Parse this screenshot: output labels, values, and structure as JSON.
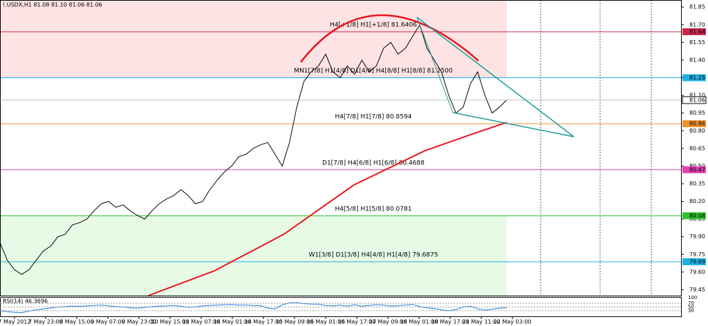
{
  "chart_data": {
    "type": "line",
    "title": "!.USDX,H1  81.08 81.10 81.06 81.06",
    "ylim": [
      79.4,
      81.91
    ],
    "yticks": [
      79.45,
      {
        "value": 79.6,
        "label": "79.60"
      },
      79.75,
      {
        "value": 79.9,
        "label": "79.90"
      },
      80.05,
      {
        "value": 80.2,
        "label": "80.20"
      },
      80.35,
      {
        "value": 80.5,
        "label": "80.50"
      },
      80.65,
      {
        "value": 80.8,
        "label": "80.80"
      },
      80.95,
      {
        "value": 81.1,
        "label": "81.10"
      },
      81.25,
      {
        "value": 81.4,
        "label": "81.40"
      },
      81.55,
      {
        "value": 81.7,
        "label": "81.70"
      },
      81.85
    ],
    "xlim": [
      0,
      94.1
    ],
    "xticks": [
      {
        "value": 2,
        "label": "7 May 2012"
      },
      {
        "value": 6.3,
        "label": "7 May 23:00"
      },
      {
        "value": 10.6,
        "label": "8 May 15:00"
      },
      {
        "value": 14.9,
        "label": "9 May 07:00"
      },
      {
        "value": 19.2,
        "label": "9 May 23:00"
      },
      {
        "value": 23.5,
        "label": "10 May 15:00"
      },
      {
        "value": 27.8,
        "label": "11 May 07:00"
      },
      {
        "value": 32.1,
        "label": "14 May 01:00"
      },
      {
        "value": 36.4,
        "label": "14 May 17:00"
      },
      {
        "value": 40.7,
        "label": "15 May 09:00"
      },
      {
        "value": 45,
        "label": "16 May 01:00"
      },
      {
        "value": 49.3,
        "label": "16 May 17:00"
      },
      {
        "value": 53.6,
        "label": "17 May 09:00"
      },
      {
        "value": 57.9,
        "label": "18 May 01:00"
      },
      {
        "value": 62.2,
        "label": "18 May 17:00"
      },
      {
        "value": 66.5,
        "label": "21 May 11:00"
      },
      {
        "value": 70.8,
        "label": "22 May 03:00"
      }
    ],
    "price": {
      "color": "#000000",
      "x": [
        0,
        1,
        2,
        3,
        4,
        5,
        6,
        7,
        8,
        9,
        10,
        11,
        12,
        13,
        14,
        15,
        16,
        17,
        18,
        19,
        20,
        21,
        22,
        23,
        24,
        25,
        26,
        27,
        28,
        29,
        30,
        31,
        32,
        33,
        34,
        35,
        36,
        37,
        38,
        39,
        40,
        41,
        42,
        43,
        44,
        45,
        46,
        47,
        48,
        49,
        50,
        51,
        52,
        53,
        54,
        55,
        56,
        57,
        58,
        59,
        60,
        61,
        62,
        63,
        64,
        65,
        66,
        67,
        68,
        69,
        70
      ],
      "values": [
        79.85,
        79.7,
        79.62,
        79.58,
        79.62,
        79.7,
        79.78,
        79.82,
        79.9,
        79.92,
        80.0,
        80.02,
        80.05,
        80.12,
        80.18,
        80.2,
        80.15,
        80.17,
        80.12,
        80.08,
        80.05,
        80.12,
        80.18,
        80.22,
        80.25,
        80.3,
        80.25,
        80.18,
        80.2,
        80.3,
        80.38,
        80.45,
        80.5,
        80.58,
        80.6,
        80.65,
        80.68,
        80.7,
        80.6,
        80.5,
        80.7,
        81.0,
        81.22,
        81.3,
        81.35,
        81.45,
        81.3,
        81.25,
        81.35,
        81.28,
        81.4,
        81.3,
        81.35,
        81.5,
        81.55,
        81.45,
        81.5,
        81.6,
        81.7,
        81.5,
        81.4,
        81.3,
        81.1,
        80.95,
        81.0,
        81.2,
        81.3,
        81.1,
        80.95,
        81.0,
        81.06
      ],
      "last_tag": "81.06"
    },
    "moving_average": {
      "color": "#e8141e",
      "x": [
        20.5,
        29.6,
        39.2,
        48.9,
        58.7,
        64.7,
        70
      ],
      "values": [
        79.4,
        79.61,
        79.92,
        80.34,
        80.63,
        80.76,
        80.87
      ]
    },
    "levels": [
      {
        "value": 81.6406,
        "label": "H4[+1/8] H1[+1/8] 81.6406",
        "tag": "81.64",
        "color": "#c8284a"
      },
      {
        "value": 81.25,
        "label": "MN1[7/8] H1[4/8] D1[4/8] H4[8/8] H1[8/8] 81.2500",
        "tag": "81.25",
        "color": "#1fb0e0"
      },
      {
        "value": 80.8594,
        "label": "H4[7/8] H1[7/8] 80.8594",
        "tag": "80.86",
        "color": "#f0902a"
      },
      {
        "value": 80.4688,
        "label": "D1[7/8] H4[6/8] H1[6/8] 80.4688",
        "tag": "80.47",
        "color": "#e040b0"
      },
      {
        "value": 80.0781,
        "label": "H4[5/8] H1[5/8] 80.0781",
        "tag": "80.08",
        "color": "#30c030"
      },
      {
        "value": 79.6875,
        "label": "W1[3/8] D1[3/8] H4[4/8] H1[4/8] 79.6875",
        "tag": "79.69",
        "color": "#1fb0e0"
      }
    ],
    "rsi": {
      "title": "RSI(14) 46.3696",
      "color": "#1e78d8",
      "ylim": [
        0,
        100
      ],
      "yticks": [
        100,
        70,
        50,
        30
      ],
      "values": [
        30,
        25,
        22,
        20,
        28,
        35,
        40,
        45,
        50,
        52,
        55,
        54,
        56,
        58,
        60,
        57,
        52,
        50,
        46,
        44,
        48,
        52,
        55,
        56,
        58,
        54,
        48,
        50,
        56,
        58,
        60,
        62,
        63,
        60,
        60,
        58,
        57,
        44,
        40,
        62,
        72,
        74,
        68,
        66,
        65,
        58,
        56,
        60,
        55,
        62,
        54,
        58,
        62,
        60,
        55,
        57,
        60,
        64,
        52,
        46,
        42,
        35,
        30,
        36,
        50,
        54,
        40,
        33,
        38,
        44,
        46
      ]
    }
  }
}
